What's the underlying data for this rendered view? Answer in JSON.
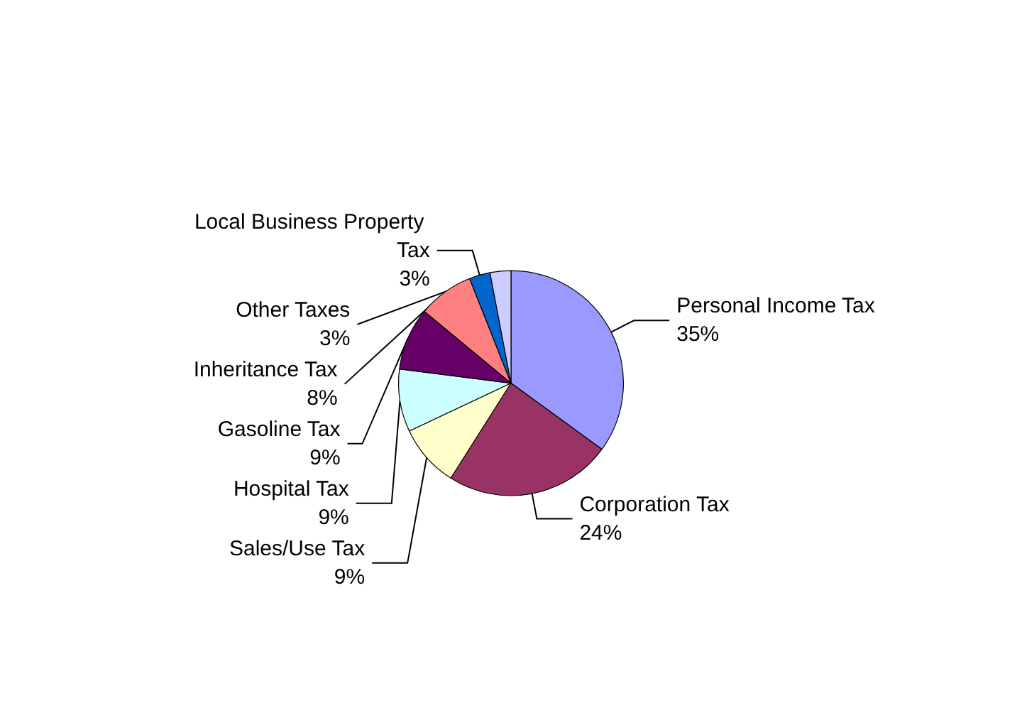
{
  "chart_data": {
    "type": "pie",
    "categories": [
      "Personal Income Tax",
      "Corporation Tax",
      "Sales/Use Tax",
      "Hospital Tax",
      "Gasoline Tax",
      "Inheritance Tax",
      "Local Business Property Tax",
      "Other Taxes"
    ],
    "values": [
      35,
      24,
      9,
      9,
      9,
      8,
      3,
      3
    ],
    "value_labels": [
      "35%",
      "24%",
      "9%",
      "9%",
      "9%",
      "8%",
      "3%",
      "3%"
    ],
    "colors": [
      "#9999ff",
      "#993366",
      "#ffffcc",
      "#ccffff",
      "#660066",
      "#ff8080",
      "#0066cc",
      "#ccccff"
    ],
    "legend": false
  }
}
